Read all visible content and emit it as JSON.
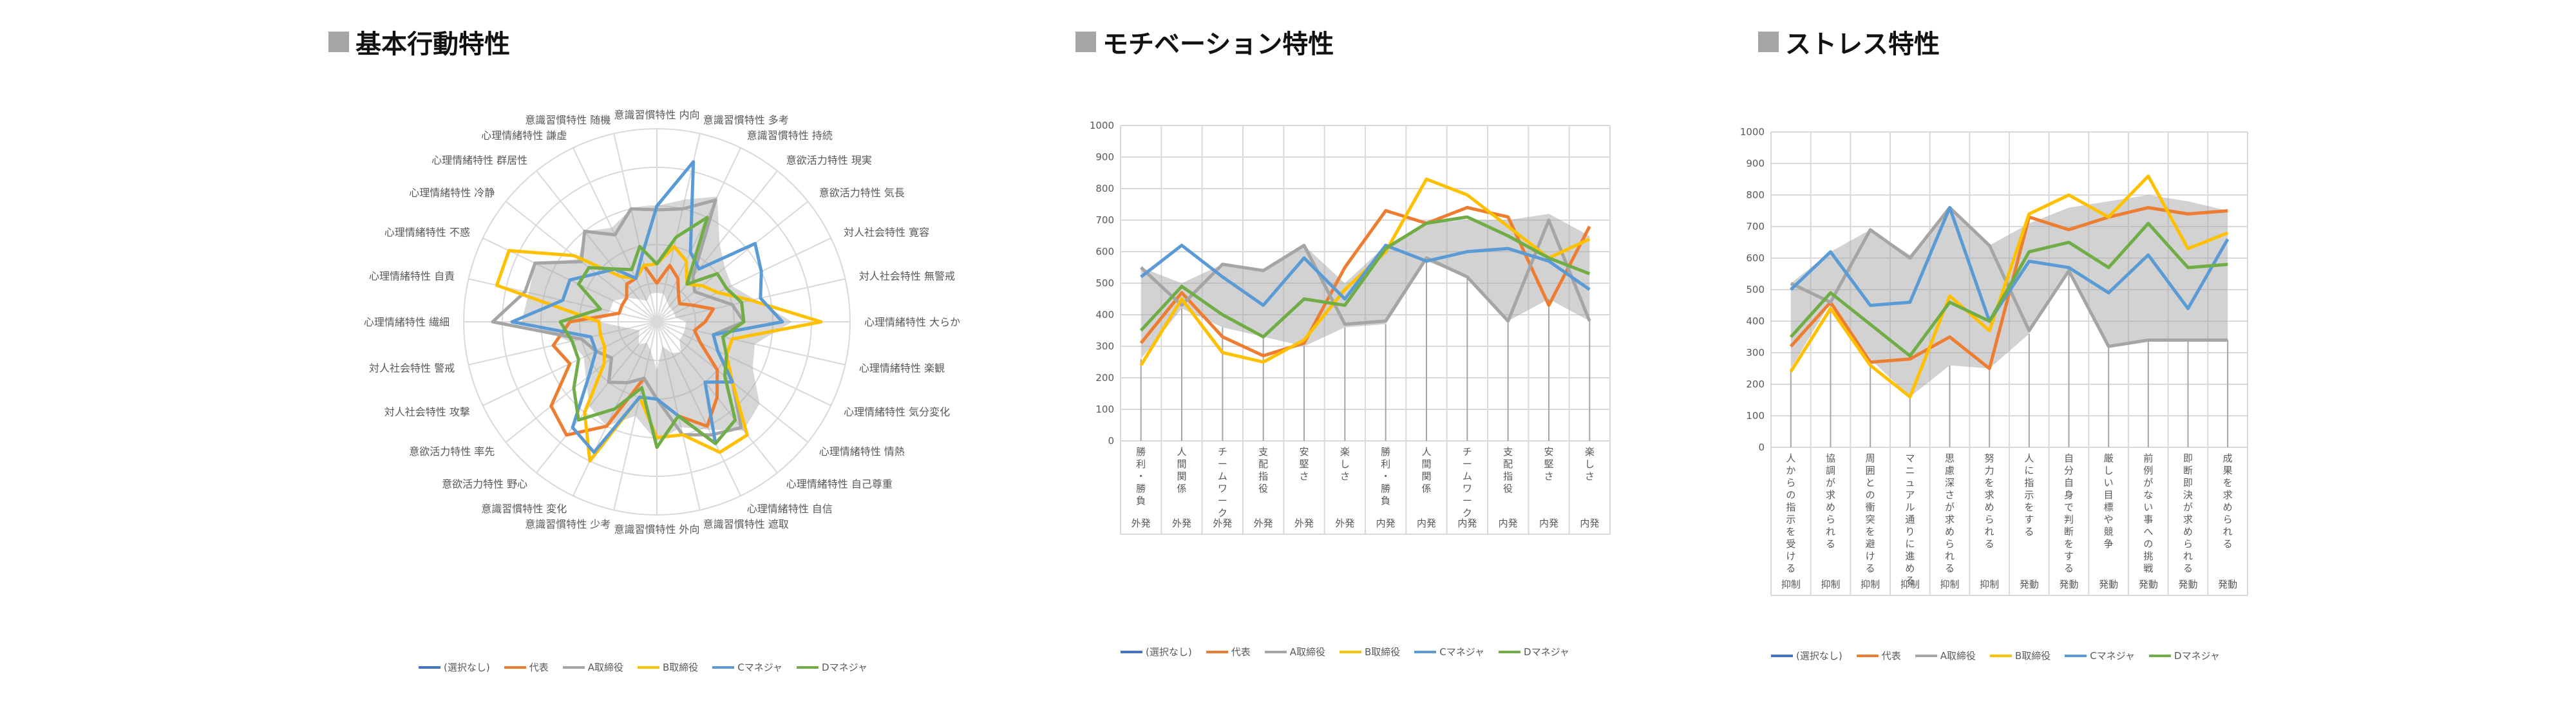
{
  "panels": {
    "basic": {
      "title": "基本行動特性"
    },
    "motivation": {
      "title": "モチベーション特性"
    },
    "stress": {
      "title": "ストレス特性"
    }
  },
  "legend": [
    {
      "label": "(選択なし)",
      "color": "#4472c4"
    },
    {
      "label": "代表",
      "color": "#ed7d31"
    },
    {
      "label": "A取締役",
      "color": "#a5a5a5"
    },
    {
      "label": "B取締役",
      "color": "#ffc000"
    },
    {
      "label": "Cマネジャ",
      "color": "#5b9bd5"
    },
    {
      "label": "Dマネジャ",
      "color": "#70ad47"
    }
  ],
  "chart_data": [
    {
      "type": "radar",
      "title": "基本行動特性",
      "range": [
        0,
        1000
      ],
      "categories": [
        "意識習慣特性 内向",
        "意識習慣特性 多考",
        "意識習慣特性 持続",
        "意欲活力特性 現実",
        "意欲活力特性 気長",
        "対人社会特性 寛容",
        "対人社会特性 無警戒",
        "心理情緒特性 大らか",
        "心理情緒特性 楽観",
        "心理情緒特性 気分変化",
        "心理情緒特性 情熱",
        "心理情緒特性 自己尊重",
        "心理情緒特性 自信",
        "意識習慣特性 遮取",
        "意識習慣特性 外向",
        "意識習慣特性 少考",
        "意識習慣特性 変化",
        "意欲活力特性 野心",
        "意欲活力特性 率先",
        "対人社会特性 攻撃",
        "対人社会特性 警戒",
        "心理情緒特性 繊細",
        "心理情緒特性 自責",
        "心理情緒特性 不惑",
        "心理情緒特性 冷静",
        "心理情緒特性 群居性",
        "心理情緒特性 謙虚",
        "意識習慣特性 随機"
      ],
      "band": {
        "max": [
          600,
          650,
          720,
          520,
          450,
          430,
          520,
          700,
          520,
          550,
          680,
          720,
          620,
          560,
          620,
          500,
          600,
          560,
          470,
          420,
          460,
          700,
          680,
          700,
          520,
          600,
          540,
          600
        ],
        "min": [
          150,
          150,
          120,
          100,
          100,
          100,
          100,
          150,
          150,
          150,
          150,
          200,
          180,
          130,
          250,
          150,
          120,
          150,
          120,
          100,
          150,
          300,
          250,
          250,
          200,
          150,
          120,
          150
        ]
      },
      "series": [
        {
          "name": "(選択なし)",
          "color": "#4472c4",
          "values": [
            0,
            0,
            0,
            0,
            0,
            0,
            0,
            0,
            0,
            0,
            0,
            0,
            0,
            0,
            0,
            0,
            0,
            0,
            0,
            0,
            0,
            0,
            0,
            0,
            0,
            0,
            0,
            0
          ]
        },
        {
          "name": "代表",
          "color": "#ed7d31",
          "values": [
            200,
            300,
            250,
            180,
            150,
            200,
            300,
            250,
            200,
            250,
            400,
            500,
            600,
            500,
            400,
            300,
            600,
            750,
            700,
            500,
            550,
            450,
            200,
            200,
            200,
            250,
            250,
            300
          ]
        },
        {
          "name": "A取締役",
          "color": "#a5a5a5",
          "values": [
            580,
            600,
            700,
            300,
            250,
            300,
            400,
            450,
            300,
            350,
            500,
            700,
            650,
            600,
            400,
            300,
            350,
            400,
            300,
            350,
            400,
            850,
            700,
            700,
            500,
            600,
            500,
            600
          ]
        },
        {
          "name": "B取締役",
          "color": "#ffc000",
          "values": [
            300,
            400,
            350,
            250,
            300,
            350,
            500,
            850,
            400,
            400,
            500,
            750,
            750,
            600,
            600,
            400,
            800,
            600,
            350,
            300,
            300,
            300,
            850,
            850,
            550,
            300,
            250,
            300
          ]
        },
        {
          "name": "Cマネジャ",
          "color": "#5b9bd5",
          "values": [
            600,
            850,
            400,
            350,
            650,
            600,
            550,
            650,
            300,
            350,
            500,
            400,
            700,
            500,
            400,
            400,
            750,
            700,
            450,
            350,
            350,
            750,
            500,
            500,
            400,
            350,
            250,
            350
          ]
        },
        {
          "name": "Dマネジャ",
          "color": "#70ad47",
          "values": [
            300,
            450,
            600,
            250,
            400,
            400,
            450,
            450,
            350,
            400,
            450,
            650,
            700,
            500,
            650,
            350,
            500,
            650,
            550,
            450,
            450,
            500,
            300,
            450,
            450,
            350,
            300,
            400
          ]
        }
      ]
    },
    {
      "type": "line",
      "title": "モチベーション特性",
      "ylim": [
        0,
        1000
      ],
      "yticks": [
        0,
        100,
        200,
        300,
        400,
        500,
        600,
        700,
        800,
        900,
        1000
      ],
      "categories": [
        {
          "label": "勝利・勝負",
          "group": "外発"
        },
        {
          "label": "人間関係",
          "group": "外発"
        },
        {
          "label": "チームワーク",
          "group": "外発"
        },
        {
          "label": "支配指役",
          "group": "外発"
        },
        {
          "label": "安堅さ",
          "group": "外発"
        },
        {
          "label": "楽しさ",
          "group": "外発"
        },
        {
          "label": "勝利・勝負",
          "group": "内発"
        },
        {
          "label": "人間関係",
          "group": "内発"
        },
        {
          "label": "チームワーク",
          "group": "内発"
        },
        {
          "label": "支配指役",
          "group": "内発"
        },
        {
          "label": "安堅さ",
          "group": "内発"
        },
        {
          "label": "楽しさ",
          "group": "内発"
        }
      ],
      "band": {
        "max": [
          550,
          500,
          560,
          540,
          620,
          500,
          620,
          690,
          700,
          700,
          720,
          650
        ],
        "min": [
          260,
          420,
          360,
          330,
          300,
          360,
          370,
          570,
          520,
          380,
          450,
          380
        ]
      },
      "series": [
        {
          "name": "(選択なし)",
          "color": "#4472c4",
          "values": [
            null,
            null,
            null,
            null,
            null,
            null,
            null,
            null,
            null,
            null,
            null,
            null
          ]
        },
        {
          "name": "代表",
          "color": "#ed7d31",
          "values": [
            310,
            470,
            330,
            270,
            310,
            550,
            730,
            690,
            740,
            710,
            430,
            680
          ]
        },
        {
          "name": "A取締役",
          "color": "#a5a5a5",
          "values": [
            550,
            430,
            560,
            540,
            620,
            370,
            380,
            580,
            520,
            380,
            700,
            380
          ]
        },
        {
          "name": "B取締役",
          "color": "#ffc000",
          "values": [
            240,
            450,
            280,
            250,
            320,
            480,
            600,
            830,
            780,
            680,
            580,
            640
          ]
        },
        {
          "name": "Cマネジャ",
          "color": "#5b9bd5",
          "values": [
            520,
            620,
            520,
            430,
            580,
            450,
            620,
            570,
            600,
            610,
            570,
            480
          ]
        },
        {
          "name": "Dマネジャ",
          "color": "#70ad47",
          "values": [
            350,
            490,
            400,
            330,
            450,
            430,
            610,
            690,
            710,
            650,
            580,
            530
          ]
        }
      ]
    },
    {
      "type": "line",
      "title": "ストレス特性",
      "ylim": [
        0,
        1000
      ],
      "yticks": [
        0,
        100,
        200,
        300,
        400,
        500,
        600,
        700,
        800,
        900,
        1000
      ],
      "categories": [
        {
          "label": "人からの指示を受ける",
          "group": "抑制"
        },
        {
          "label": "協調が求められる",
          "group": "抑制"
        },
        {
          "label": "周囲との衝突を避ける",
          "group": "抑制"
        },
        {
          "label": "マニュアル通りに進める",
          "group": "抑制"
        },
        {
          "label": "思慮深さが求められる",
          "group": "抑制"
        },
        {
          "label": "努力を求められる",
          "group": "抑制"
        },
        {
          "label": "人に指示をする",
          "group": "発動"
        },
        {
          "label": "自分自身で判断をする",
          "group": "発動"
        },
        {
          "label": "厳しい目標や競争",
          "group": "発動"
        },
        {
          "label": "前例がない事への挑戦",
          "group": "発動"
        },
        {
          "label": "即断即決が求められる",
          "group": "発動"
        },
        {
          "label": "成果を求められる",
          "group": "発動"
        }
      ],
      "band": {
        "max": [
          520,
          620,
          690,
          610,
          760,
          640,
          710,
          760,
          780,
          800,
          780,
          750
        ],
        "min": [
          250,
          460,
          280,
          160,
          260,
          250,
          360,
          560,
          320,
          340,
          340,
          340
        ]
      },
      "series": [
        {
          "name": "(選択なし)",
          "color": "#4472c4",
          "values": [
            null,
            null,
            null,
            null,
            null,
            null,
            null,
            null,
            null,
            null,
            null,
            null
          ]
        },
        {
          "name": "代表",
          "color": "#ed7d31",
          "values": [
            320,
            460,
            270,
            280,
            350,
            250,
            730,
            690,
            730,
            760,
            740,
            750
          ]
        },
        {
          "name": "A取締役",
          "color": "#a5a5a5",
          "values": [
            520,
            460,
            690,
            600,
            760,
            640,
            370,
            560,
            320,
            340,
            340,
            340
          ]
        },
        {
          "name": "B取締役",
          "color": "#ffc000",
          "values": [
            240,
            440,
            260,
            160,
            480,
            370,
            740,
            800,
            730,
            860,
            630,
            680
          ]
        },
        {
          "name": "Cマネジャ",
          "color": "#5b9bd5",
          "values": [
            500,
            620,
            450,
            460,
            760,
            400,
            590,
            570,
            490,
            610,
            440,
            660
          ]
        },
        {
          "name": "Dマネジャ",
          "color": "#70ad47",
          "values": [
            350,
            490,
            390,
            290,
            460,
            400,
            620,
            650,
            570,
            710,
            570,
            580
          ]
        }
      ]
    }
  ]
}
